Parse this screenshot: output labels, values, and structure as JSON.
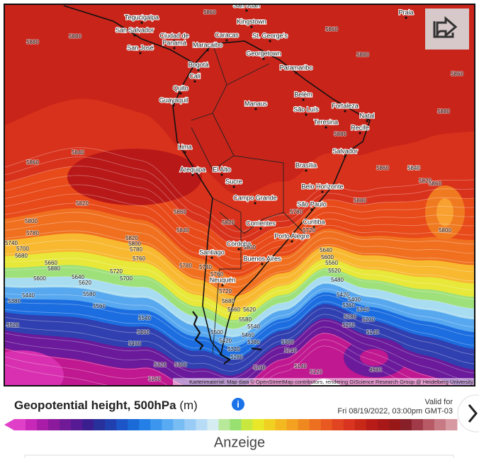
{
  "map": {
    "cities": [
      "Tegucigalpa",
      "San Salvador",
      "Ciudad de",
      "Panamá",
      "San José",
      "Maracaibo",
      "Caracas",
      "Kingstown",
      "St. George's",
      "Georgetown",
      "Paramaribo",
      "Bogotá",
      "Cali",
      "Quito",
      "Guayaquil",
      "Manaus",
      "Belém",
      "São Luís",
      "Fortaleza",
      "Natal",
      "Teresina",
      "Recife",
      "Salvador",
      "Lima",
      "Arequipa",
      "El Alto",
      "Brasília",
      "Sucre",
      "Belo Horizonte",
      "Campo Grande",
      "São Paulo",
      "Curitiba",
      "Corrientes",
      "Porto Alegre",
      "Córdoba",
      "Santiago",
      "Buenos Aires",
      "Neuquén",
      "Praia",
      "San Juan"
    ],
    "contour_labels": [
      5880,
      5880,
      5860,
      5860,
      5880,
      5860,
      5880,
      5840,
      5860,
      5820,
      5800,
      5780,
      5740,
      5700,
      5680,
      5660,
      5880,
      5860,
      5840,
      5820,
      5800,
      5780,
      5760,
      5720,
      5700,
      5640,
      5620,
      5600,
      5580,
      5560,
      5520,
      5540,
      5460,
      5440,
      5380,
      5400,
      5320,
      5300,
      5160,
      5880,
      5860,
      5840,
      5820,
      5800,
      5780,
      5760,
      5740,
      5720,
      5680,
      5660,
      5620,
      5580,
      5540,
      5500,
      5460,
      5420,
      5380,
      5340,
      5300,
      5280,
      5240,
      5200,
      5140,
      5120,
      5880,
      5860,
      5840,
      5820,
      5800,
      5780,
      5720,
      5640,
      5600,
      5560,
      5520,
      5480,
      5420,
      5400,
      5360,
      5340,
      5280,
      5250,
      5200,
      5140,
      4980
    ],
    "attribution": "Kartenmaterial: Map data © OpenStreetMap contributors, rendering GIScience Research Group @ Heidelberg University"
  },
  "panel": {
    "title": "Geopotential height, 500hPa",
    "unit": "(m)",
    "valid_label": "Valid for",
    "valid_time": "Fri 08/19/2022, 03:00pm GMT-03"
  },
  "ad_label": "Anzeige"
}
